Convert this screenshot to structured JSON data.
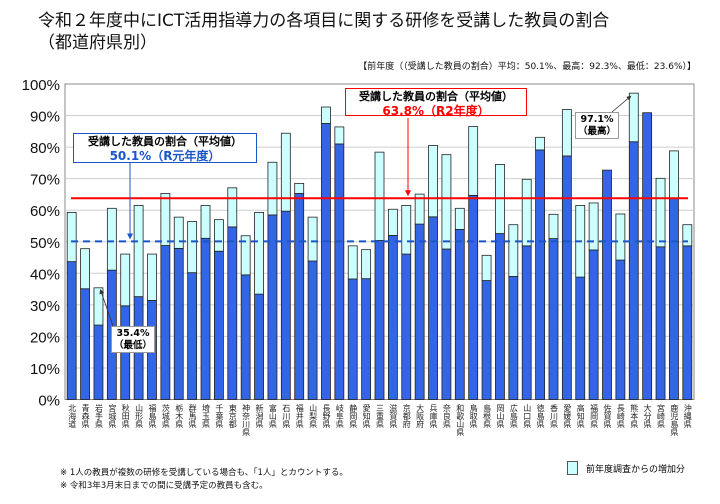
{
  "chart_data": {
    "type": "bar",
    "stacked": true,
    "title": "令和２年度中にICT活用指導力の各項目に関する研修を受講した教員の割合",
    "subtitle": "（都道府県別）",
    "previous_year_note": "【前年度（（受講した教員の割合）平均：50.1%、最高：92.3%、最低：23.6%）】",
    "ylim": [
      0,
      100
    ],
    "yticks": [
      "0%",
      "10%",
      "20%",
      "30%",
      "40%",
      "50%",
      "60%",
      "70%",
      "80%",
      "90%",
      "100%"
    ],
    "grid": true,
    "categories": [
      "北海道",
      "青森県",
      "岩手県",
      "宮城県",
      "秋田県",
      "山形県",
      "福島県",
      "茨城県",
      "栃木県",
      "群馬県",
      "埼玉県",
      "千葉県",
      "東京都",
      "神奈川県",
      "新潟県",
      "富山県",
      "石川県",
      "福井県",
      "山梨県",
      "長野県",
      "岐阜県",
      "静岡県",
      "愛知県",
      "三重県",
      "滋賀県",
      "京都府",
      "大阪府",
      "兵庫県",
      "奈良県",
      "和歌山県",
      "鳥取県",
      "島根県",
      "岡山県",
      "広島県",
      "山口県",
      "徳島県",
      "香川県",
      "愛媛県",
      "高知県",
      "福岡県",
      "佐賀県",
      "長崎県",
      "熊本県",
      "大分県",
      "宮崎県",
      "鹿児島県",
      "沖縄県"
    ],
    "series": [
      {
        "name": "",
        "color": "#3366e6",
        "values": [
          43.7,
          35.1,
          23.6,
          41.0,
          29.7,
          32.6,
          31.4,
          48.8,
          47.9,
          40.2,
          51.1,
          47.0,
          54.7,
          39.5,
          33.4,
          58.5,
          59.7,
          65.3,
          43.9,
          87.5,
          81.0,
          38.2,
          38.3,
          50.4,
          52.0,
          46.1,
          55.6,
          57.9,
          47.7,
          53.9,
          64.7,
          37.7,
          52.6,
          39.0,
          48.7,
          79.1,
          51.0,
          77.2,
          38.8,
          47.4,
          72.7,
          44.2,
          81.7,
          90.9,
          48.4,
          63.7,
          48.7
        ]
      },
      {
        "name": "前年度調査からの増加分",
        "color": "#ccffff",
        "values": [
          15.6,
          12.7,
          11.8,
          19.6,
          16.4,
          28.9,
          14.7,
          16.5,
          9.9,
          16.2,
          10.4,
          10.0,
          12.4,
          12.4,
          25.9,
          16.7,
          24.7,
          3.2,
          13.9,
          5.2,
          5.4,
          10.5,
          9.2,
          28.0,
          8.3,
          15.4,
          9.5,
          22.6,
          29.9,
          6.7,
          21.8,
          8.0,
          21.9,
          16.4,
          21.1,
          4.0,
          7.7,
          14.7,
          22.7,
          14.9,
          0,
          14.6,
          15.4,
          0,
          21.7,
          15.1,
          6.7
        ]
      }
    ],
    "reference_lines": [
      {
        "value": 63.8,
        "color": "#ff0000",
        "style": "solid",
        "label_line1": "受講した教員の割合（平均値）",
        "label_line2": "63.8%（R2年度）"
      },
      {
        "value": 50.1,
        "color": "#1a56c8",
        "style": "dashed",
        "label_line1": "受講した教員の割合（平均値）",
        "label_line2": "50.1%（R元年度）"
      }
    ],
    "annotations": {
      "max": {
        "value_label": "97.1%",
        "label": "（最高）",
        "category": "熊本県"
      },
      "min": {
        "value_label": "35.4%",
        "label": "（最低）",
        "category": "岩手県"
      }
    },
    "legend": {
      "label": "前年度調査からの増加分",
      "position": "bottom-right"
    }
  },
  "notes": [
    "※ 1人の教員が複数の研修を受講している場合も、「1人」とカウントする。",
    "※ 令和3年3月末日までの間に受講予定の教員も含む。"
  ]
}
